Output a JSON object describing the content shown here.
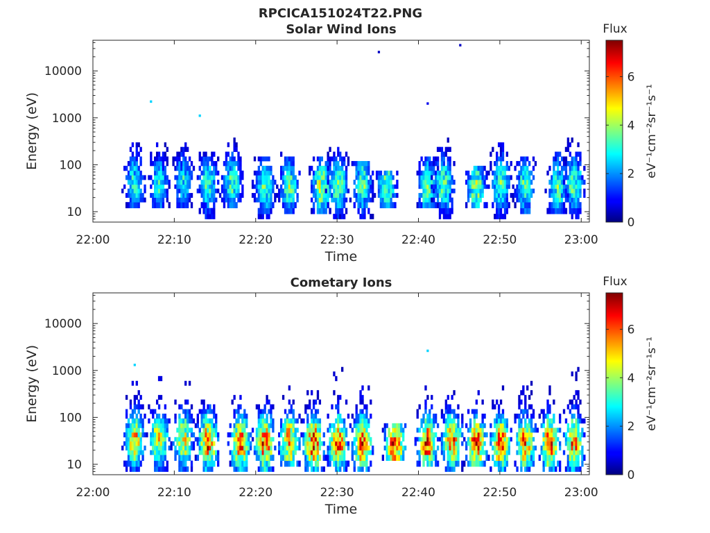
{
  "figure_title": "RPCICA151024T22.PNG",
  "chart_data": [
    {
      "type": "heatmap",
      "title": "Solar Wind Ions",
      "xlabel": "Time",
      "ylabel": "Energy (eV)",
      "x_ticks": [
        "22:00",
        "22:10",
        "22:20",
        "22:30",
        "22:40",
        "22:50",
        "23:00"
      ],
      "xlim": [
        "22:00",
        "23:01"
      ],
      "y_scale": "log",
      "y_ticks": [
        "10",
        "100",
        "1000",
        "10000"
      ],
      "ylim": [
        6,
        45000
      ],
      "colorbar": {
        "title": "Flux",
        "label": "eV⁻¹cm⁻²sr⁻¹s⁻¹",
        "ticks": [
          "0",
          "2",
          "4",
          "6"
        ],
        "range": [
          0,
          7.5
        ],
        "colormap": "jet"
      },
      "bursts": [
        {
          "t": "22:05",
          "e_min": 12,
          "e_max": 220,
          "peak_flux": 3.0,
          "peak_energy": 35
        },
        {
          "t": "22:08",
          "e_min": 12,
          "e_max": 280,
          "peak_flux": 2.8,
          "peak_energy": 35
        },
        {
          "t": "22:11",
          "e_min": 10,
          "e_max": 300,
          "peak_flux": 2.6,
          "peak_energy": 40
        },
        {
          "t": "22:14",
          "e_min": 7,
          "e_max": 160,
          "peak_flux": 3.2,
          "peak_energy": 35
        },
        {
          "t": "22:17",
          "e_min": 12,
          "e_max": 300,
          "peak_flux": 3.4,
          "peak_energy": 35
        },
        {
          "t": "22:21",
          "e_min": 7,
          "e_max": 120,
          "peak_flux": 3.5,
          "peak_energy": 30
        },
        {
          "t": "22:24",
          "e_min": 9,
          "e_max": 150,
          "peak_flux": 3.6,
          "peak_energy": 30
        },
        {
          "t": "22:28",
          "e_min": 9,
          "e_max": 120,
          "peak_flux": 4.5,
          "peak_energy": 30
        },
        {
          "t": "22:30",
          "e_min": 7,
          "e_max": 200,
          "peak_flux": 3.8,
          "peak_energy": 35
        },
        {
          "t": "22:33",
          "e_min": 7,
          "e_max": 100,
          "peak_flux": 3.4,
          "peak_energy": 35
        },
        {
          "t": "22:36",
          "e_min": 10,
          "e_max": 60,
          "peak_flux": 3.6,
          "peak_energy": 30
        },
        {
          "t": "22:41",
          "e_min": 10,
          "e_max": 110,
          "peak_flux": 3.6,
          "peak_energy": 30
        },
        {
          "t": "22:43",
          "e_min": 7,
          "e_max": 350,
          "peak_flux": 3.6,
          "peak_energy": 35
        },
        {
          "t": "22:47",
          "e_min": 10,
          "e_max": 70,
          "peak_flux": 4.0,
          "peak_energy": 30
        },
        {
          "t": "22:50",
          "e_min": 7,
          "e_max": 230,
          "peak_flux": 3.5,
          "peak_energy": 35
        },
        {
          "t": "22:53",
          "e_min": 9,
          "e_max": 130,
          "peak_flux": 3.4,
          "peak_energy": 30
        },
        {
          "t": "22:57",
          "e_min": 9,
          "e_max": 200,
          "peak_flux": 3.5,
          "peak_energy": 30
        },
        {
          "t": "22:59",
          "e_min": 7,
          "e_max": 320,
          "peak_flux": 3.6,
          "peak_energy": 35
        }
      ],
      "isolated_points": [
        {
          "t": "22:07",
          "energy": 2200,
          "flux": 2.5
        },
        {
          "t": "22:13",
          "energy": 1100,
          "flux": 2.5
        },
        {
          "t": "22:35",
          "energy": 25000,
          "flux": 0.5
        },
        {
          "t": "22:41",
          "energy": 2000,
          "flux": 0.8
        },
        {
          "t": "22:45",
          "energy": 35000,
          "flux": 0.5
        }
      ]
    },
    {
      "type": "heatmap",
      "title": "Cometary Ions",
      "xlabel": "Time",
      "ylabel": "Energy (eV)",
      "x_ticks": [
        "22:00",
        "22:10",
        "22:20",
        "22:30",
        "22:40",
        "22:50",
        "23:00"
      ],
      "xlim": [
        "22:00",
        "23:01"
      ],
      "y_scale": "log",
      "y_ticks": [
        "10",
        "100",
        "1000",
        "10000"
      ],
      "ylim": [
        6,
        45000
      ],
      "colorbar": {
        "title": "Flux",
        "label": "eV⁻¹cm⁻²sr⁻¹s⁻¹",
        "ticks": [
          "0",
          "2",
          "4",
          "6"
        ],
        "range": [
          0,
          7.5
        ],
        "colormap": "jet"
      },
      "bursts": [
        {
          "t": "22:05",
          "e_min": 7,
          "e_max": 600,
          "peak_flux": 5.5,
          "peak_energy": 30
        },
        {
          "t": "22:08",
          "e_min": 7,
          "e_max": 550,
          "peak_flux": 5.0,
          "peak_energy": 30
        },
        {
          "t": "22:11",
          "e_min": 7,
          "e_max": 500,
          "peak_flux": 5.0,
          "peak_energy": 30
        },
        {
          "t": "22:14",
          "e_min": 7,
          "e_max": 200,
          "peak_flux": 6.5,
          "peak_energy": 25
        },
        {
          "t": "22:18",
          "e_min": 7,
          "e_max": 500,
          "peak_flux": 6.5,
          "peak_energy": 25
        },
        {
          "t": "22:21",
          "e_min": 7,
          "e_max": 250,
          "peak_flux": 6.5,
          "peak_energy": 25
        },
        {
          "t": "22:24",
          "e_min": 9,
          "e_max": 350,
          "peak_flux": 6.0,
          "peak_energy": 28
        },
        {
          "t": "22:27",
          "e_min": 7,
          "e_max": 300,
          "peak_flux": 7.0,
          "peak_energy": 25
        },
        {
          "t": "22:30",
          "e_min": 7,
          "e_max": 900,
          "peak_flux": 6.5,
          "peak_energy": 25
        },
        {
          "t": "22:33",
          "e_min": 7,
          "e_max": 400,
          "peak_flux": 6.5,
          "peak_energy": 25
        },
        {
          "t": "22:37",
          "e_min": 10,
          "e_max": 60,
          "peak_flux": 7.0,
          "peak_energy": 22
        },
        {
          "t": "22:41",
          "e_min": 9,
          "e_max": 500,
          "peak_flux": 6.5,
          "peak_energy": 25
        },
        {
          "t": "22:44",
          "e_min": 7,
          "e_max": 300,
          "peak_flux": 6.0,
          "peak_energy": 28
        },
        {
          "t": "22:47",
          "e_min": 9,
          "e_max": 300,
          "peak_flux": 6.5,
          "peak_energy": 25
        },
        {
          "t": "22:50",
          "e_min": 7,
          "e_max": 550,
          "peak_flux": 6.5,
          "peak_energy": 25
        },
        {
          "t": "22:53",
          "e_min": 7,
          "e_max": 500,
          "peak_flux": 6.0,
          "peak_energy": 25
        },
        {
          "t": "22:56",
          "e_min": 7,
          "e_max": 400,
          "peak_flux": 6.5,
          "peak_energy": 25
        },
        {
          "t": "22:59",
          "e_min": 7,
          "e_max": 1500,
          "peak_flux": 6.0,
          "peak_energy": 25
        }
      ],
      "isolated_points": [
        {
          "t": "22:05",
          "energy": 1300,
          "flux": 2.5
        },
        {
          "t": "22:41",
          "energy": 2600,
          "flux": 2.5
        }
      ]
    }
  ]
}
